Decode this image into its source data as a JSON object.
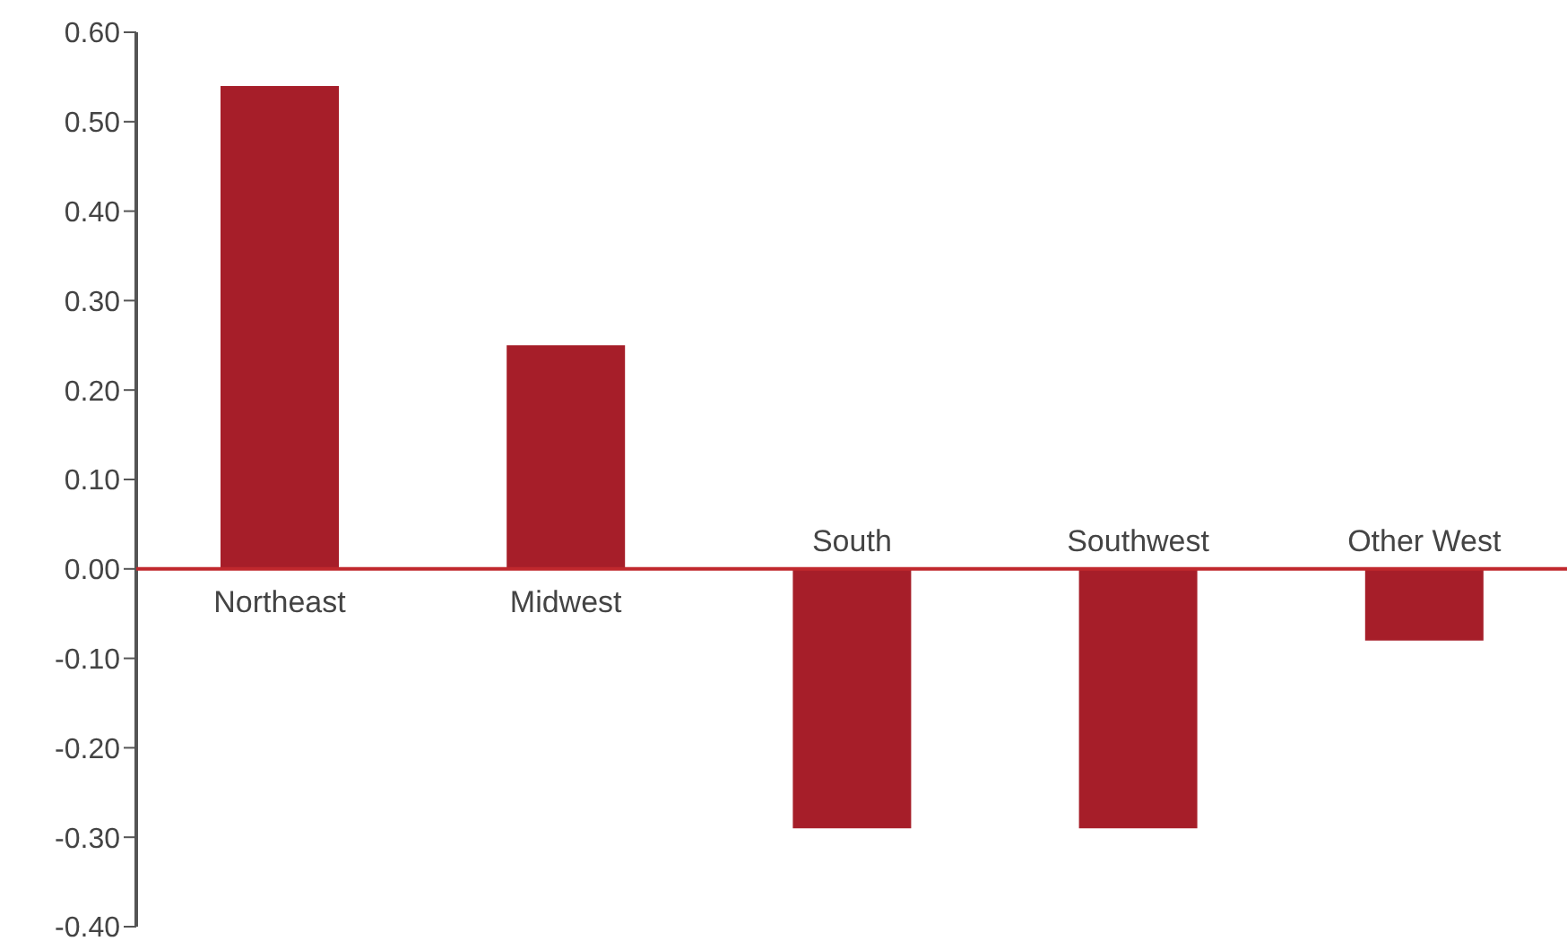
{
  "chart_data": {
    "type": "bar",
    "categories": [
      "Northeast",
      "Midwest",
      "South",
      "Southwest",
      "Other West"
    ],
    "values": [
      0.54,
      0.25,
      -0.29,
      -0.29,
      -0.08
    ],
    "color": "#a61e29",
    "ylim": [
      -0.4,
      0.6
    ],
    "yticks": [
      {
        "value": -0.4,
        "label": "-0.40"
      },
      {
        "value": -0.3,
        "label": "-0.30"
      },
      {
        "value": -0.2,
        "label": "-0.20"
      },
      {
        "value": -0.1,
        "label": "-0.10"
      },
      {
        "value": 0,
        "label": "0.00"
      },
      {
        "value": 0.1,
        "label": "0.10"
      },
      {
        "value": 0.2,
        "label": "0.20"
      },
      {
        "value": 0.3,
        "label": "0.30"
      },
      {
        "value": 0.4,
        "label": "0.40"
      },
      {
        "value": 0.5,
        "label": "0.50"
      },
      {
        "value": 0.6,
        "label": "0.60"
      }
    ],
    "grid": false,
    "legend": false
  }
}
